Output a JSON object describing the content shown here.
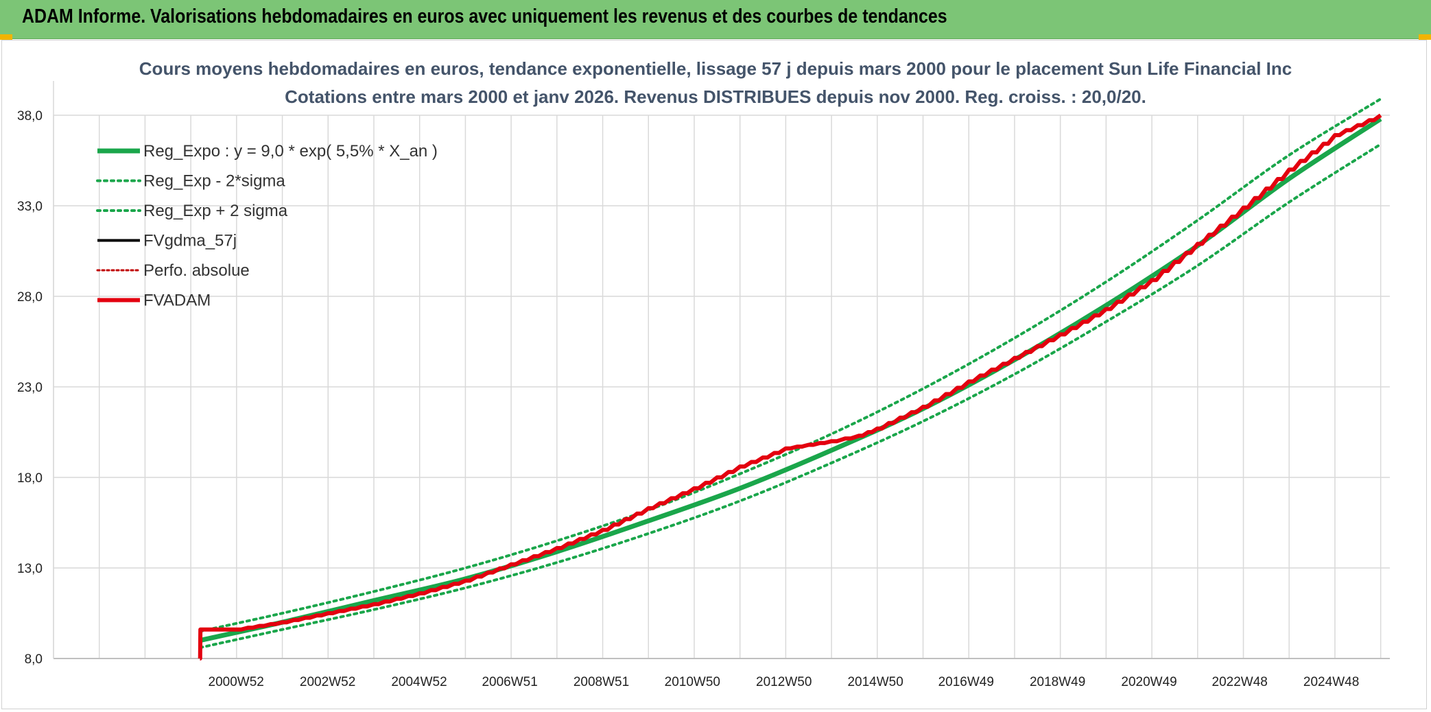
{
  "header": {
    "banner_title": "ADAM Informe. Valorisations hebdomadaires en euros avec uniquement les revenus et des courbes de tendances"
  },
  "colors": {
    "banner": "#7cc576",
    "reg_expo": "#1aa64b",
    "fvadam": "#e3000f",
    "fvgdma": "#000000",
    "perfo": "#c00000",
    "grid": "#d9d9d9",
    "title": "#44546a"
  },
  "chart_data": {
    "type": "line",
    "title_lines": [
      "Cours moyens hebdomadaires en euros, tendance exponentielle, lissage 57 j depuis mars 2000 pour le placement Sun Life Financial Inc",
      "Cotations entre mars 2000 et janv 2026. Revenus DISTRIBUES depuis nov 2000. Reg. croiss. : 20,0/20."
    ],
    "xlabel": "",
    "ylabel": "",
    "x_ticks": [
      "2000W52",
      "2002W52",
      "2004W52",
      "2006W51",
      "2008W51",
      "2010W50",
      "2012W50",
      "2014W50",
      "2016W49",
      "2018W49",
      "2020W49",
      "2022W48",
      "2024W48"
    ],
    "x_tick_years": [
      2000.99,
      2002.99,
      2004.99,
      2006.97,
      2008.97,
      2010.96,
      2012.96,
      2014.96,
      2016.94,
      2018.94,
      2020.94,
      2022.92,
      2024.92
    ],
    "xlim": [
      1997.0,
      2026.2
    ],
    "y_ticks": [
      "8,0",
      "13,0",
      "18,0",
      "23,0",
      "28,0",
      "33,0",
      "38,0"
    ],
    "ylim": [
      8.0,
      38.0
    ],
    "grid": true,
    "legend_position": "top-left",
    "legend": [
      "Reg_Expo : y = 9,0 * exp( 5,5% *  X_an )",
      "Reg_Exp - 2*sigma",
      "Reg_Exp + 2 sigma",
      "FVgdma_57j",
      "Perfo. absolue",
      "FVADAM"
    ],
    "series": [
      {
        "name": "Reg_Expo : y = 9,0 * exp( 5,5% *  X_an )",
        "style": "solid-thick-green",
        "x": [
          2000.2,
          2002.0,
          2004.0,
          2006.0,
          2008.0,
          2010.0,
          2012.0,
          2014.0,
          2016.0,
          2018.0,
          2020.0,
          2022.0,
          2024.0,
          2026.0
        ],
        "y": [
          9.0,
          10.0,
          11.2,
          12.4,
          13.9,
          15.6,
          17.4,
          19.5,
          21.8,
          24.5,
          27.5,
          30.8,
          34.5,
          37.8
        ]
      },
      {
        "name": "Reg_Exp - 2*sigma",
        "style": "dotted-green",
        "x": [
          2000.2,
          2002.0,
          2004.0,
          2006.0,
          2008.0,
          2010.0,
          2012.0,
          2014.0,
          2016.0,
          2018.0,
          2020.0,
          2022.0,
          2024.0,
          2026.0
        ],
        "y": [
          8.6,
          9.6,
          10.7,
          11.9,
          13.3,
          14.9,
          16.7,
          18.8,
          21.1,
          23.7,
          26.6,
          29.7,
          33.2,
          36.4
        ]
      },
      {
        "name": "Reg_Exp + 2 sigma",
        "style": "dotted-green",
        "x": [
          2000.2,
          2002.0,
          2004.0,
          2006.0,
          2008.0,
          2010.0,
          2012.0,
          2014.0,
          2016.0,
          2018.0,
          2020.0,
          2022.0,
          2024.0,
          2026.0
        ],
        "y": [
          9.5,
          10.5,
          11.7,
          13.0,
          14.5,
          16.2,
          18.2,
          20.4,
          22.9,
          25.7,
          28.8,
          32.2,
          35.8,
          38.9
        ]
      },
      {
        "name": "FVADAM",
        "style": "solid-thick-red",
        "x": [
          2000.2,
          2000.21,
          2001.0,
          2002.0,
          2003.0,
          2004.0,
          2005.0,
          2006.0,
          2007.0,
          2008.0,
          2009.0,
          2010.0,
          2011.0,
          2012.0,
          2013.0,
          2014.0,
          2014.6,
          2015.0,
          2016.0,
          2017.0,
          2018.0,
          2019.0,
          2020.0,
          2021.0,
          2022.0,
          2023.0,
          2024.0,
          2025.0,
          2026.0
        ],
        "y": [
          8.0,
          9.6,
          9.6,
          10.0,
          10.5,
          11.0,
          11.6,
          12.3,
          13.2,
          14.1,
          15.1,
          16.3,
          17.4,
          18.6,
          19.6,
          20.0,
          20.3,
          20.7,
          21.9,
          23.3,
          24.6,
          25.9,
          27.3,
          28.9,
          30.9,
          32.9,
          35.0,
          36.9,
          38.0
        ]
      }
    ]
  }
}
